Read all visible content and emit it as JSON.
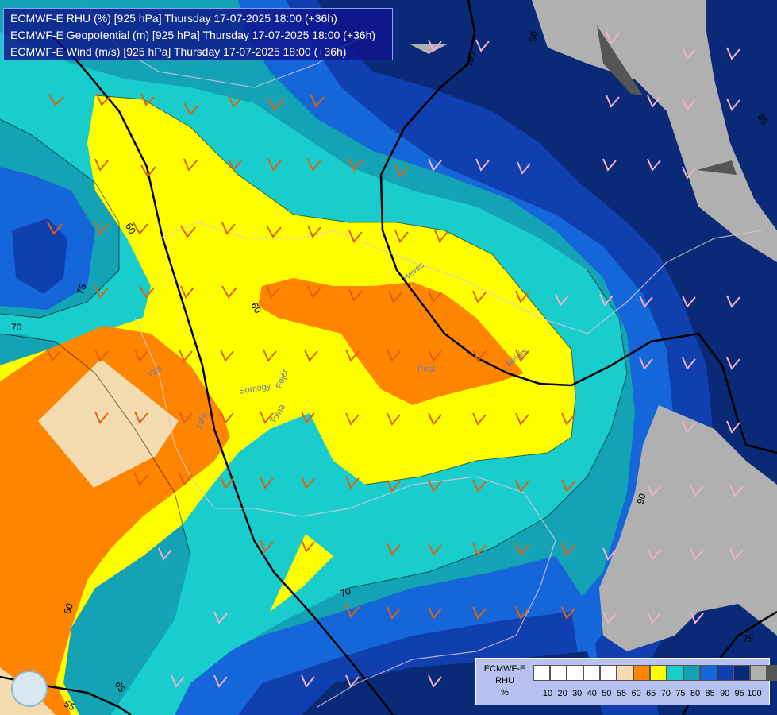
{
  "header": {
    "line1": "ECMWF-E RHU (%) [925 hPa] Thursday 17-07-2025 18:00 (+36h)",
    "line2": "ECMWF-E Geopotential (m) [925 hPa] Thursday 17-07-2025 18:00 (+36h)",
    "line3": "ECMWF-E Wind (m/s) [925 hPa] Thursday 17-07-2025 18:00 (+36h)"
  },
  "legend": {
    "title_line1": "ECMWF-E",
    "title_line2": "RHU",
    "title_line3": "%",
    "colors": [
      "#ffffff",
      "#ffffff",
      "#ffffff",
      "#ffffff",
      "#ffffff",
      "#f5dcb0",
      "#ff8500",
      "#ffff00",
      "#19cdcd",
      "#13a3b4",
      "#1566d8",
      "#1040b0",
      "#0a2a78",
      "#b0b0b0",
      "#555555"
    ],
    "ticks": [
      "10",
      "20",
      "30",
      "40",
      "50",
      "55",
      "60",
      "65",
      "70",
      "75",
      "80",
      "85",
      "90",
      "95",
      "100"
    ]
  },
  "contour_labels": {
    "c1": "70",
    "c2": "75",
    "c3": "60",
    "c4": "60",
    "c5": "60",
    "c6": "65",
    "c7": "70",
    "c8": "55",
    "c9": "65",
    "c10": "180",
    "c11": "90",
    "c12": "85",
    "c13": "90",
    "c14": "75",
    "c15": "90"
  },
  "places": {
    "p1": "Somogy",
    "p2": "Fejér",
    "p3": "Tolna",
    "p4": "Zala",
    "p5": "Pest",
    "p6": "Heves",
    "p7": "Békés",
    "p8": "Vas"
  },
  "colors": {
    "rh_55": "#f5dcb0",
    "rh_60": "#ff8500",
    "rh_65": "#ffff00",
    "rh_70": "#19cdcd",
    "rh_75": "#13a3b4",
    "rh_80": "#1566d8",
    "rh_85": "#1040b0",
    "rh_90": "#0a2a78",
    "rh_95": "#b0b0b0"
  }
}
